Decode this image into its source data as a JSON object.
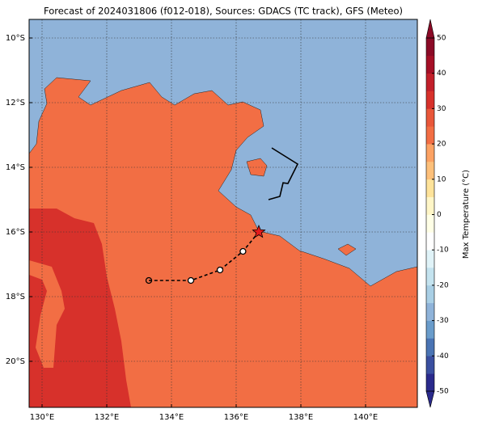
{
  "map": {
    "title": "Forecast of 2024031806 (f012-018), Sources: GDACS (TC track), GFS (Meteo)",
    "xlim": [
      129.6,
      141.6
    ],
    "ylim": [
      -21.425,
      -9.425
    ],
    "lon_ticks": [
      {
        "value": 130,
        "label": "130°E"
      },
      {
        "value": 132,
        "label": "132°E"
      },
      {
        "value": 134,
        "label": "134°E"
      },
      {
        "value": 136,
        "label": "136°E"
      },
      {
        "value": 138,
        "label": "138°E"
      },
      {
        "value": 140,
        "label": "140°E"
      }
    ],
    "lat_ticks": [
      {
        "value": -10,
        "label": "10°S"
      },
      {
        "value": -12,
        "label": "12°S"
      },
      {
        "value": -14,
        "label": "14°S"
      },
      {
        "value": -16,
        "label": "16°S"
      },
      {
        "value": -18,
        "label": "18°S"
      },
      {
        "value": -20,
        "label": "20°S"
      }
    ],
    "grid": true,
    "colorbar": {
      "label": "Max Temperature (°C)",
      "lim": [
        -50,
        50
      ],
      "ticks": [
        -50,
        -40,
        -30,
        -20,
        -10,
        0,
        10,
        20,
        30,
        40,
        50
      ],
      "colors": [
        "#2a2a8c",
        "#3a4fa0",
        "#4a74b4",
        "#6a9ccb",
        "#8fb3d9",
        "#a9cfe5",
        "#c4e3ef",
        "#e0f3f8",
        "#ffffff",
        "#ffffe6",
        "#fff6c7",
        "#fee39a",
        "#fdc07a",
        "#fca263",
        "#f26e44",
        "#e9573a",
        "#d7312b",
        "#c21f2a",
        "#a50f26",
        "#8b0a26"
      ]
    },
    "observed_track": {
      "lon": [
        137.1,
        137.9,
        137.6,
        137.45,
        137.35,
        137.0
      ],
      "lat": [
        -13.4,
        -13.9,
        -14.5,
        -14.48,
        -14.9,
        -15.0
      ]
    },
    "forecast_track": {
      "lon": [
        136.7,
        136.21,
        135.5,
        134.6,
        133.3
      ],
      "lat": [
        -16.0,
        -16.6,
        -17.175,
        -17.5,
        -17.5
      ]
    }
  }
}
